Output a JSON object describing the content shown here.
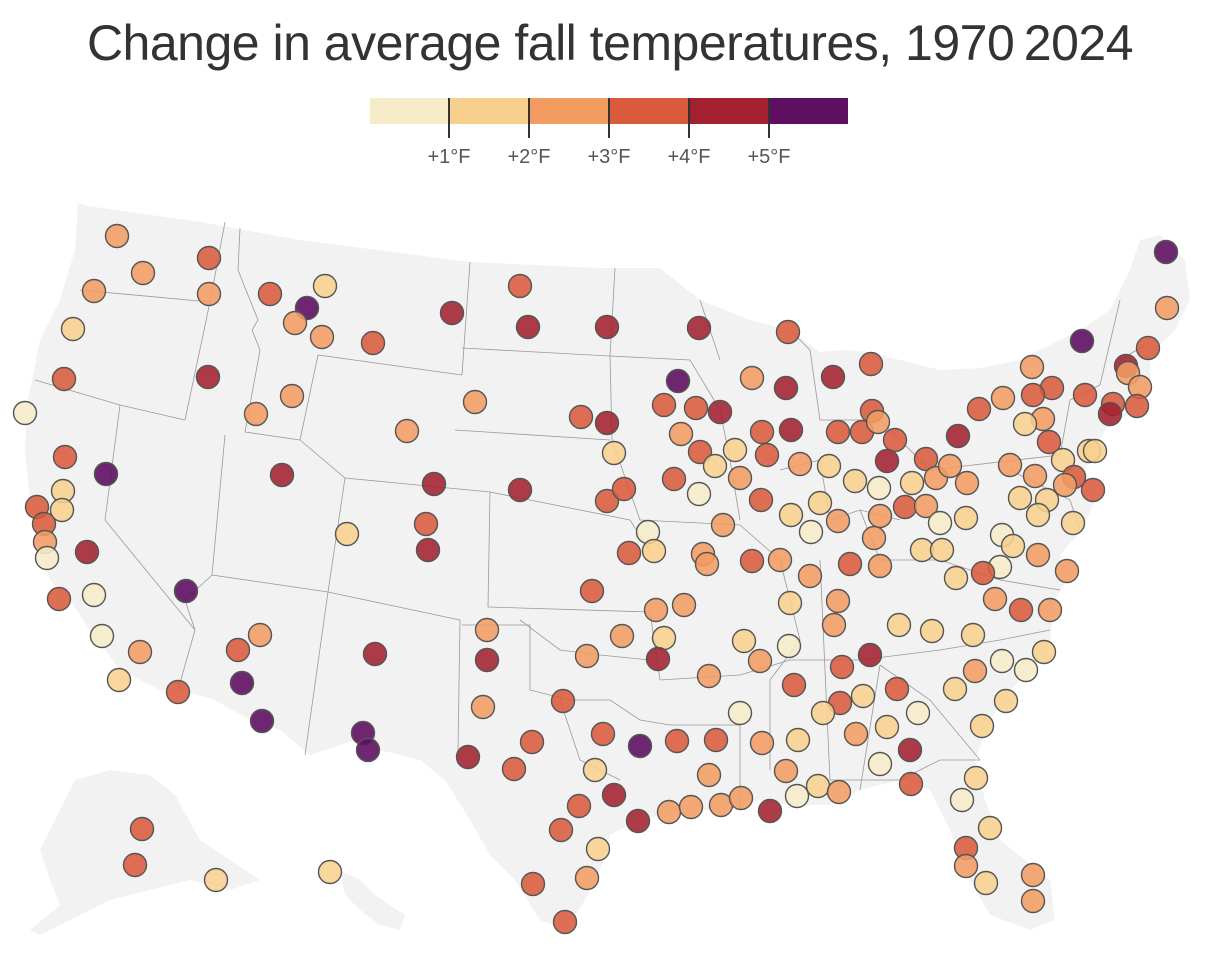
{
  "title": "Change in average fall temperatures, 1970 2024",
  "legend": {
    "colors": [
      "#f6ebc8",
      "#f7d08e",
      "#f39c62",
      "#d95b3c",
      "#a3202f",
      "#5f0f62"
    ],
    "labels": [
      "+1°F",
      "+2°F",
      "+3°F",
      "+4°F",
      "+5°F"
    ]
  },
  "map": {
    "land_color": "#f2f2f2",
    "border_color": "#999999"
  }
}
